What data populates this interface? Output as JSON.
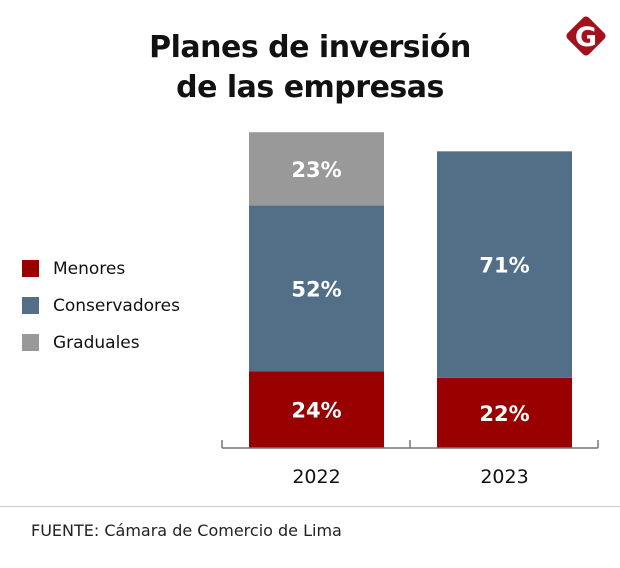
{
  "chart_data": {
    "type": "bar",
    "stacked": true,
    "title_lines": [
      "Planes de inversión",
      "de las empresas"
    ],
    "categories": [
      "2022",
      "2023"
    ],
    "series": [
      {
        "name": "Menores",
        "color": "#990000",
        "values": [
          24,
          22
        ]
      },
      {
        "name": "Conservadores",
        "color": "#536f87",
        "values": [
          52,
          71
        ]
      },
      {
        "name": "Graduales",
        "color": "#999999",
        "values": [
          23,
          null
        ]
      }
    ],
    "value_suffix": "%",
    "ylim": [
      0,
      100
    ],
    "grid": false,
    "legend_position": "left"
  },
  "source": "FUENTE: Cámara de Comercio de Lima",
  "logo": {
    "letter": "G",
    "color": "#a3111c"
  }
}
